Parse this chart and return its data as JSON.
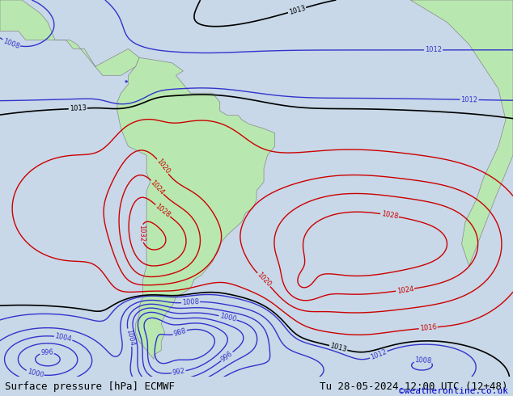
{
  "title_left": "Surface pressure [hPa] ECMWF",
  "title_right": "Tu 28-05-2024 12:00 UTC (12+48)",
  "copyright": "©weatheronline.co.uk",
  "bg_color": "#c8d8e8",
  "land_color": "#b8e8b0",
  "fig_width": 6.34,
  "fig_height": 4.9,
  "dpi": 100,
  "bottom_bar_color": "#d4d4d4",
  "bottom_bar_height": 0.048,
  "title_fontsize": 9,
  "copyright_fontsize": 8,
  "copyright_color": "#0000cc",
  "contour_blue_levels": [
    988,
    992,
    996,
    1000,
    1004,
    1008,
    1012
  ],
  "contour_black_levels": [
    1013
  ],
  "contour_red_levels": [
    1016,
    1020,
    1024,
    1028,
    1032
  ],
  "contour_lw": 1.0,
  "label_fontsize": 6
}
